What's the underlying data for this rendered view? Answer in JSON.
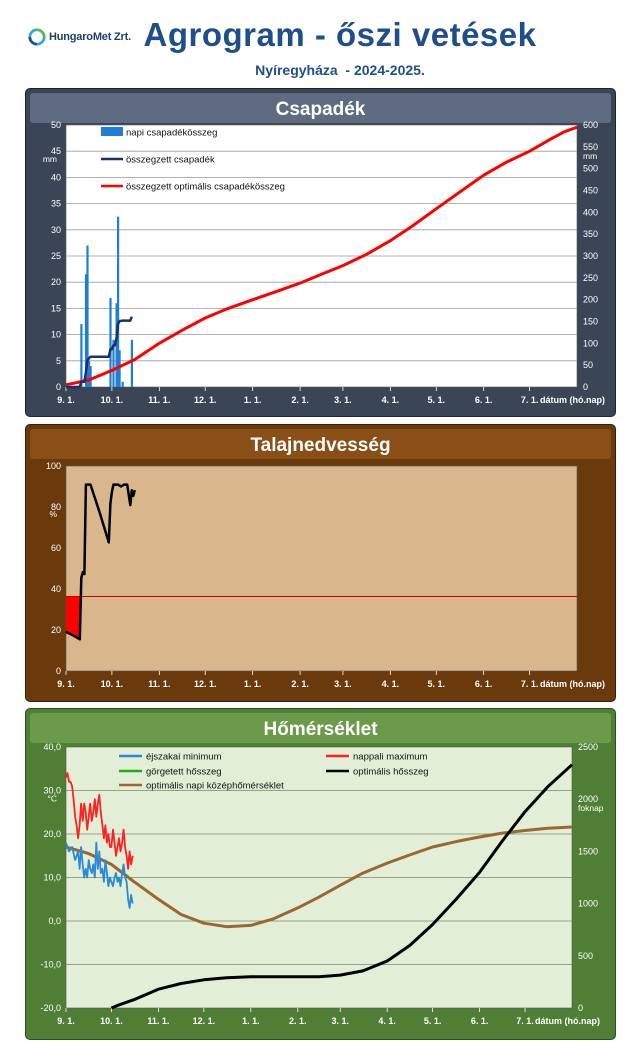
{
  "header": {
    "logo_text": "HungaroMet Zrt.",
    "title": "Agrogram - őszi vetések",
    "subtitle": "Nyíregyháza  - 2024-2025."
  },
  "colors": {
    "precip_bar": "#1f7fd6",
    "precip_sum": "#1a2f6e",
    "precip_optimal": "#ff0000",
    "soil_line": "#000000",
    "soil_threshold": "#cc0000",
    "temp_min": "#2a8ad8",
    "temp_max": "#ff2020",
    "temp_rolling_sum": "#22aa22",
    "temp_optimal_sum": "#000000",
    "temp_optimal_mean": "#9c6630"
  },
  "chart_data": [
    {
      "type": "bar",
      "title": "Csapadék",
      "y_unit": "mm",
      "y2_unit": "mm",
      "xlabel": "dátum (hó.nap)",
      "ylim": [
        0,
        50
      ],
      "y2lim": [
        0,
        600
      ],
      "yticks": [
        "0",
        "5",
        "10",
        "15",
        "20",
        "25",
        "30",
        "35",
        "40",
        "45",
        "50"
      ],
      "y2ticks": [
        "0",
        "50",
        "100",
        "150",
        "200",
        "250",
        "300",
        "350",
        "400",
        "450",
        "500",
        "550",
        "600"
      ],
      "xlim": [
        0,
        334
      ],
      "xticks": [
        {
          "day": 0,
          "label": "9. 1."
        },
        {
          "day": 30,
          "label": "10. 1."
        },
        {
          "day": 61,
          "label": "11. 1."
        },
        {
          "day": 91,
          "label": "12. 1."
        },
        {
          "day": 122,
          "label": "1. 1."
        },
        {
          "day": 153,
          "label": "2. 1."
        },
        {
          "day": 181,
          "label": "3. 1."
        },
        {
          "day": 212,
          "label": "4. 1."
        },
        {
          "day": 242,
          "label": "5. 1."
        },
        {
          "day": 273,
          "label": "6. 1."
        },
        {
          "day": 303,
          "label": "7. 1."
        }
      ],
      "legend": [
        {
          "label": "napi csapadékösszeg",
          "kind": "bar"
        },
        {
          "label": "összegzett csapadék",
          "kind": "line"
        },
        {
          "label": "összegzett optimális csapadékösszeg",
          "kind": "line"
        }
      ],
      "series": [
        {
          "name": "napi csapadékösszeg",
          "axis": "left",
          "kind": "bar",
          "points": [
            [
              10,
              12
            ],
            [
              13,
              21.5
            ],
            [
              14,
              27
            ],
            [
              15,
              5
            ],
            [
              16,
              4
            ],
            [
              29,
              17
            ],
            [
              31,
              9
            ],
            [
              33,
              16
            ],
            [
              34,
              32.5
            ],
            [
              35,
              7
            ],
            [
              37,
              1
            ],
            [
              43,
              9
            ]
          ]
        },
        {
          "name": "összegzett csapadék",
          "axis": "right",
          "kind": "line",
          "points": [
            [
              0,
              0
            ],
            [
              9,
              0
            ],
            [
              10,
              12
            ],
            [
              12,
              12
            ],
            [
              13,
              33.5
            ],
            [
              14,
              60.5
            ],
            [
              15,
              65.5
            ],
            [
              16,
              69.5
            ],
            [
              28,
              69.5
            ],
            [
              29,
              86.5
            ],
            [
              30,
              86.5
            ],
            [
              31,
              95.5
            ],
            [
              32,
              95.5
            ],
            [
              33,
              111.5
            ],
            [
              34,
              144
            ],
            [
              35,
              151
            ],
            [
              37,
              152
            ],
            [
              42,
              152
            ],
            [
              43,
              161
            ]
          ]
        },
        {
          "name": "összegzett optimális csapadékösszeg",
          "axis": "right",
          "kind": "line",
          "points": [
            [
              0,
              5
            ],
            [
              15,
              16
            ],
            [
              30,
              38
            ],
            [
              45,
              63
            ],
            [
              61,
              100
            ],
            [
              76,
              130
            ],
            [
              91,
              158
            ],
            [
              106,
              180
            ],
            [
              122,
              200
            ],
            [
              137,
              218
            ],
            [
              153,
              238
            ],
            [
              167,
              258
            ],
            [
              181,
              278
            ],
            [
              196,
              303
            ],
            [
              212,
              335
            ],
            [
              227,
              370
            ],
            [
              242,
              408
            ],
            [
              258,
              448
            ],
            [
              273,
              485
            ],
            [
              288,
              515
            ],
            [
              303,
              540
            ],
            [
              318,
              570
            ],
            [
              326,
              585
            ],
            [
              334,
              595
            ]
          ]
        }
      ]
    },
    {
      "type": "line",
      "title": "Talajnedvesség",
      "y_unit": "%",
      "xlabel": "dátum (hó.nap)",
      "ylim": [
        0,
        110
      ],
      "yticks": [
        "0",
        "20",
        "40",
        "60",
        "80",
        "100"
      ],
      "xlim": [
        0,
        334
      ],
      "xticks": [
        {
          "day": 0,
          "label": "9. 1."
        },
        {
          "day": 30,
          "label": "10. 1."
        },
        {
          "day": 61,
          "label": "11. 1."
        },
        {
          "day": 91,
          "label": "12. 1."
        },
        {
          "day": 122,
          "label": "1. 1."
        },
        {
          "day": 153,
          "label": "2. 1."
        },
        {
          "day": 181,
          "label": "3. 1."
        },
        {
          "day": 212,
          "label": "4. 1."
        },
        {
          "day": 242,
          "label": "5. 1."
        },
        {
          "day": 273,
          "label": "6. 1."
        },
        {
          "day": 303,
          "label": "7. 1."
        }
      ],
      "threshold": 40,
      "series": [
        {
          "name": "talajnedvesség",
          "points": [
            [
              0,
              21
            ],
            [
              5,
              19
            ],
            [
              9,
              17
            ],
            [
              10,
              50
            ],
            [
              11,
              53
            ],
            [
              12,
              52
            ],
            [
              13,
              100
            ],
            [
              16,
              100
            ],
            [
              22,
              85
            ],
            [
              28,
              69
            ],
            [
              29,
              90
            ],
            [
              30,
              96
            ],
            [
              31,
              100
            ],
            [
              34,
              100
            ],
            [
              36,
              99
            ],
            [
              38,
              100
            ],
            [
              40,
              100
            ],
            [
              42,
              89
            ],
            [
              43,
              97
            ],
            [
              44,
              94
            ],
            [
              45,
              97
            ]
          ]
        }
      ]
    },
    {
      "type": "line",
      "title": "Hőmérséklet",
      "y_unit": "°C",
      "y2_unit": "foknap",
      "xlabel": "dátum (hó.nap)",
      "ylim": [
        -20,
        40
      ],
      "y2lim": [
        0,
        2500
      ],
      "yticks": [
        "-20,0",
        "-10,0",
        "0,0",
        "10,0",
        "20,0",
        "30,0",
        "40,0"
      ],
      "y2ticks": [
        "0",
        "500",
        "1000",
        "1500",
        "2000",
        "2500"
      ],
      "xlim": [
        0,
        334
      ],
      "xticks": [
        {
          "day": 0,
          "label": "9. 1."
        },
        {
          "day": 30,
          "label": "10. 1."
        },
        {
          "day": 61,
          "label": "11. 1."
        },
        {
          "day": 91,
          "label": "12. 1."
        },
        {
          "day": 122,
          "label": "1. 1."
        },
        {
          "day": 153,
          "label": "2. 1."
        },
        {
          "day": 181,
          "label": "3. 1."
        },
        {
          "day": 212,
          "label": "4. 1."
        },
        {
          "day": 242,
          "label": "5. 1."
        },
        {
          "day": 273,
          "label": "6. 1."
        },
        {
          "day": 303,
          "label": "7. 1."
        }
      ],
      "legend": [
        {
          "label": "éjszakai minimum"
        },
        {
          "label": "nappali maximum"
        },
        {
          "label": "görgetett hősszeg"
        },
        {
          "label": "optimális hősszeg"
        },
        {
          "label": "optimális napi középhőmérséklet"
        }
      ],
      "series": [
        {
          "name": "éjszakai minimum",
          "axis": "left",
          "points": [
            [
              0,
              18
            ],
            [
              2,
              16
            ],
            [
              4,
              17
            ],
            [
              6,
              14
            ],
            [
              7,
              15
            ],
            [
              8,
              16
            ],
            [
              9,
              12
            ],
            [
              10,
              17
            ],
            [
              11,
              13
            ],
            [
              12,
              10
            ],
            [
              13,
              12
            ],
            [
              14,
              10
            ],
            [
              15,
              14
            ],
            [
              16,
              12
            ],
            [
              17,
              11
            ],
            [
              18,
              13
            ],
            [
              19,
              10
            ],
            [
              20,
              18
            ],
            [
              21,
              12
            ],
            [
              22,
              16
            ],
            [
              23,
              11
            ],
            [
              24,
              12
            ],
            [
              25,
              9
            ],
            [
              26,
              14
            ],
            [
              27,
              11
            ],
            [
              28,
              8
            ],
            [
              29,
              10
            ],
            [
              30,
              9
            ],
            [
              31,
              8
            ],
            [
              32,
              10
            ],
            [
              33,
              11
            ],
            [
              34,
              9
            ],
            [
              35,
              10
            ],
            [
              36,
              8
            ],
            [
              37,
              11
            ],
            [
              38,
              13
            ],
            [
              39,
              10
            ],
            [
              40,
              9
            ],
            [
              41,
              5
            ],
            [
              42,
              3
            ],
            [
              43,
              6
            ],
            [
              44,
              4
            ]
          ]
        },
        {
          "name": "nappali maximum",
          "axis": "left",
          "points": [
            [
              0,
              33
            ],
            [
              1,
              34
            ],
            [
              2,
              32
            ],
            [
              3,
              32
            ],
            [
              4,
              31
            ],
            [
              5,
              28
            ],
            [
              6,
              24
            ],
            [
              7,
              22
            ],
            [
              8,
              19
            ],
            [
              9,
              22
            ],
            [
              10,
              27
            ],
            [
              11,
              23
            ],
            [
              12,
              27
            ],
            [
              13,
              25
            ],
            [
              14,
              21
            ],
            [
              15,
              24
            ],
            [
              16,
              27
            ],
            [
              17,
              23
            ],
            [
              18,
              25
            ],
            [
              19,
              28
            ],
            [
              20,
              24
            ],
            [
              21,
              27
            ],
            [
              22,
              29
            ],
            [
              23,
              25
            ],
            [
              24,
              22
            ],
            [
              25,
              19
            ],
            [
              26,
              22
            ],
            [
              27,
              18
            ],
            [
              28,
              20
            ],
            [
              29,
              17
            ],
            [
              30,
              17
            ],
            [
              31,
              21
            ],
            [
              32,
              18
            ],
            [
              33,
              15
            ],
            [
              34,
              17
            ],
            [
              35,
              19
            ],
            [
              36,
              16
            ],
            [
              37,
              18
            ],
            [
              38,
              21
            ],
            [
              39,
              17
            ],
            [
              40,
              15
            ],
            [
              41,
              12
            ],
            [
              42,
              16
            ],
            [
              43,
              13
            ],
            [
              44,
              15
            ]
          ]
        },
        {
          "name": "optimális hősszeg",
          "axis": "right",
          "points": [
            [
              30,
              0
            ],
            [
              35,
              30
            ],
            [
              45,
              80
            ],
            [
              61,
              180
            ],
            [
              76,
              235
            ],
            [
              91,
              270
            ],
            [
              106,
              290
            ],
            [
              122,
              300
            ],
            [
              137,
              300
            ],
            [
              153,
              300
            ],
            [
              167,
              300
            ],
            [
              181,
              315
            ],
            [
              196,
              355
            ],
            [
              212,
              450
            ],
            [
              227,
              600
            ],
            [
              242,
              800
            ],
            [
              258,
              1050
            ],
            [
              273,
              1300
            ],
            [
              288,
              1600
            ],
            [
              303,
              1880
            ],
            [
              318,
              2120
            ],
            [
              334,
              2330
            ]
          ]
        },
        {
          "name": "optimális napi középhőmérséklet",
          "axis": "left",
          "points": [
            [
              0,
              17
            ],
            [
              15,
              15.5
            ],
            [
              30,
              13
            ],
            [
              45,
              9
            ],
            [
              61,
              5
            ],
            [
              76,
              1.5
            ],
            [
              91,
              -0.5
            ],
            [
              106,
              -1.3
            ],
            [
              122,
              -1
            ],
            [
              137,
              0.5
            ],
            [
              153,
              3
            ],
            [
              167,
              5.5
            ],
            [
              181,
              8.2
            ],
            [
              196,
              11
            ],
            [
              212,
              13.3
            ],
            [
              227,
              15.2
            ],
            [
              242,
              17
            ],
            [
              258,
              18.3
            ],
            [
              273,
              19.3
            ],
            [
              288,
              20.2
            ],
            [
              303,
              20.8
            ],
            [
              318,
              21.3
            ],
            [
              334,
              21.6
            ]
          ]
        }
      ]
    }
  ]
}
